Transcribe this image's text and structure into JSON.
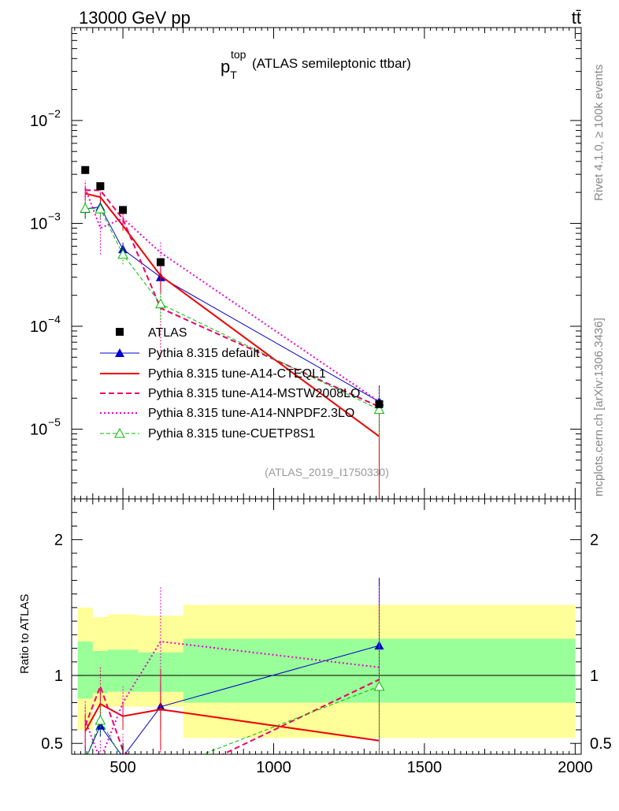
{
  "header": {
    "energy_label": "13000 GeV pp",
    "process_label": "tt̄"
  },
  "side_labels": {
    "rivet": "Rivet 4.1.0, ≥ 100k events",
    "site": "mcplots.cern.ch [arXiv:1306.3436]"
  },
  "colors": {
    "atlas": "#000000",
    "default": "#0000cc",
    "cteql1": "#ee0000",
    "mstw": "#ee0066",
    "nnpdf": "#ee00cc",
    "cuetp8s1": "#00bb00",
    "band_outer": "#ffff99",
    "band_inner": "#99ff99"
  },
  "chart_data": {
    "type": "line",
    "title": "p_T^top (ATLAS semileptonic ttbar)",
    "title_main": "p",
    "title_sub": "T",
    "title_sup": "top",
    "title_rest": "(ATLAS semileptonic ttbar)",
    "watermark": "(ATLAS_2019_I1750330)",
    "xlabel": "",
    "ylabel_ratio": "Ratio to ATLAS",
    "xlim": [
      330,
      2020
    ],
    "ylim_main": [
      2.1e-06,
      0.08
    ],
    "ylim_ratio": [
      0.42,
      2.3
    ],
    "x_ticks": [
      {
        "value": 500,
        "label": "500"
      },
      {
        "value": 1000,
        "label": "1000"
      },
      {
        "value": 1500,
        "label": "1500"
      },
      {
        "value": 2000,
        "label": "2000"
      }
    ],
    "y_ticks_main": [
      {
        "value": 0.01,
        "label": "10",
        "exp": "−2"
      },
      {
        "value": 0.001,
        "label": "10",
        "exp": "−3"
      },
      {
        "value": 0.0001,
        "label": "10",
        "exp": "−4"
      },
      {
        "value": 1e-05,
        "label": "10",
        "exp": "−5"
      }
    ],
    "y_ticks_ratio": [
      {
        "value": 0.5,
        "label": "0.5"
      },
      {
        "value": 1,
        "label": "1"
      },
      {
        "value": 2,
        "label": "2"
      }
    ],
    "bin_edges": [
      350,
      400,
      450,
      550,
      700,
      2000
    ],
    "data": {
      "name": "ATLAS",
      "x": [
        375,
        425,
        500,
        625,
        1350
      ],
      "y": [
        0.0033,
        0.0023,
        0.00135,
        0.00042,
        1.75e-05
      ]
    },
    "band_outer": [
      {
        "x0": 350,
        "x1": 400,
        "lo": 0.6,
        "hi": 1.5
      },
      {
        "x0": 400,
        "x1": 450,
        "lo": 0.77,
        "hi": 1.43
      },
      {
        "x0": 450,
        "x1": 550,
        "lo": 0.77,
        "hi": 1.45
      },
      {
        "x0": 550,
        "x1": 700,
        "lo": 0.77,
        "hi": 1.44
      },
      {
        "x0": 700,
        "x1": 2000,
        "lo": 0.54,
        "hi": 1.52
      }
    ],
    "band_inner": [
      {
        "x0": 350,
        "x1": 400,
        "lo": 0.83,
        "hi": 1.25
      },
      {
        "x0": 400,
        "x1": 450,
        "lo": 0.87,
        "hi": 1.18
      },
      {
        "x0": 450,
        "x1": 550,
        "lo": 0.88,
        "hi": 1.19
      },
      {
        "x0": 550,
        "x1": 700,
        "lo": 0.88,
        "hi": 1.17
      },
      {
        "x0": 700,
        "x1": 2000,
        "lo": 0.8,
        "hi": 1.27
      }
    ],
    "series": [
      {
        "key": "default",
        "name": "Pythia 8.315 default",
        "style": "solid",
        "width": 1,
        "marker": "triangle-filled",
        "x": [
          375,
          425,
          500,
          625,
          1350
        ],
        "y": [
          0.00138,
          0.00145,
          0.00056,
          0.0003,
          1.85e-05
        ],
        "err": [
          0.00025,
          0.00022,
          9e-05,
          8e-05,
          8e-06
        ],
        "ratio": [
          0.38,
          0.63,
          0.4,
          0.77,
          1.22
        ],
        "ratio_err": [
          0.1,
          0.08,
          0.08,
          0.17,
          0.5
        ]
      },
      {
        "key": "cteql1",
        "name": "Pythia 8.315 tune-A14-CTEQL1",
        "style": "solid",
        "width": 2,
        "marker": "none",
        "x": [
          375,
          425,
          500,
          625,
          1350
        ],
        "y": [
          0.00195,
          0.0018,
          0.00095,
          0.00031,
          8.5e-06
        ],
        "err": [
          0.0003,
          0.0002,
          0.0001,
          0.0001,
          6.5e-06
        ],
        "ratio": [
          0.59,
          0.79,
          0.7,
          0.75,
          0.52
        ],
        "ratio_err": [
          0.12,
          0.1,
          0.1,
          0.3,
          0.42
        ]
      },
      {
        "key": "mstw",
        "name": "Pythia 8.315 tune-A14-MSTW2008LO",
        "style": "dashed",
        "width": 2,
        "marker": "none",
        "x": [
          375,
          425,
          500,
          625,
          1350
        ],
        "y": [
          0.0021,
          0.0021,
          0.0011,
          0.00015,
          1.65e-05
        ],
        "err": [
          0.0004,
          0.0003,
          0.0002,
          0.0001,
          8e-06
        ],
        "ratio": [
          0.63,
          0.92,
          0.45,
          0.2,
          0.97
        ],
        "ratio_err": [
          0.15,
          0.15,
          0.12,
          0.3,
          0.55
        ]
      },
      {
        "key": "nnpdf",
        "name": "Pythia 8.315 tune-A14-NNPDF2.3LO",
        "style": "dotted",
        "width": 2,
        "marker": "none",
        "x": [
          375,
          425,
          500,
          625,
          1350
        ],
        "y": [
          0.0022,
          0.0009,
          0.00112,
          0.00052,
          1.85e-05
        ],
        "err": [
          0.0004,
          0.0004,
          0.0002,
          0.00016,
          8e-06
        ],
        "ratio": [
          0.67,
          0.38,
          0.8,
          1.25,
          1.06
        ],
        "ratio_err": [
          0.15,
          0.15,
          0.12,
          0.4,
          0.6
        ]
      },
      {
        "key": "cuetp8s1",
        "name": "Pythia 8.315 tune-CUETP8S1",
        "style": "dashed-thin",
        "width": 1,
        "marker": "triangle-open",
        "x": [
          375,
          425,
          500,
          625,
          1350
        ],
        "y": [
          0.0014,
          0.00138,
          0.0005,
          0.000165,
          1.55e-05
        ],
        "err": [
          0.0003,
          0.00025,
          0.0001,
          5e-05,
          7e-06
        ],
        "ratio": [
          0.37,
          0.67,
          0.38,
          0.3,
          0.92
        ],
        "ratio_err": [
          0.08,
          0.1,
          0.08,
          0.1,
          0.5
        ]
      }
    ]
  }
}
